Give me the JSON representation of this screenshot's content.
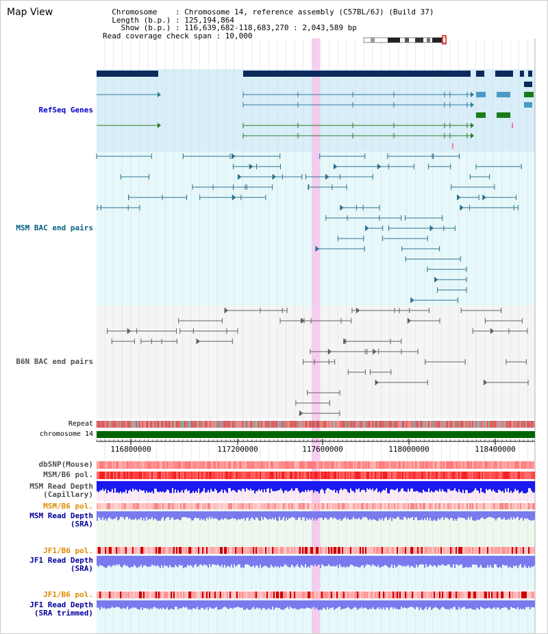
{
  "header": {
    "title": "Map View",
    "info_lines": [
      "  Chromosome    : Chromosome 14, reference assembly (C57BL/6J) (Build 37)",
      "  Length (b.p.) : 125,194,864",
      "    Show (b.p.) : 116,639,682-118,683,270 : 2,043,589 bp",
      "Read coverage check span : 10,000"
    ]
  },
  "tracks": {
    "refseq": "RefSeq Genes",
    "msm_bac": "MSM BAC end pairs",
    "b6n_bac": "B6N BAC end pairs",
    "repeat": "Repeat",
    "chromosome": "chromosome 14",
    "dbsnp": "dbSNP(Mouse)",
    "msm_b6_pol_1": "MSM/B6 pol.",
    "msm_depth_cap_1": "MSM Read Depth",
    "msm_depth_cap_2": "(Capillary)",
    "msm_b6_pol_2": "MSM/B6 pol.",
    "msm_depth_sra_1": "MSM Read Depth",
    "msm_depth_sra_2": "(SRA)",
    "jf1_b6_pol_1": "JF1/B6 pol.",
    "jf1_depth_sra_1": "JF1 Read Depth",
    "jf1_depth_sra_2": "(SRA)",
    "jf1_b6_pol_2": "JF1/B6 pol.",
    "jf1_depth_trim_1": "JF1 Read Depth",
    "jf1_depth_trim_2": "(SRA trimmed)"
  },
  "axis": {
    "ticks": [
      "116800000",
      "117200000",
      "117600000",
      "118000000",
      "118400000"
    ]
  },
  "colors": {
    "refseq_label": "#0000cc",
    "msm_label": "#006080",
    "b6n_label": "#505050",
    "orange_label": "#e08a00",
    "blue_label": "#000099",
    "highlight": "#f5c6ec",
    "chromosome_bar": "#006400"
  }
}
